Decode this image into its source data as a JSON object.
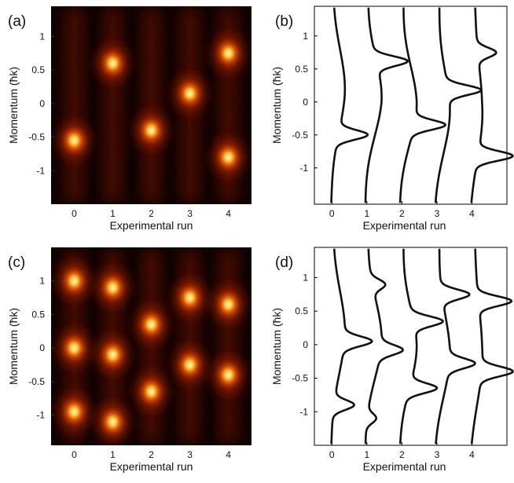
{
  "panels": [
    {
      "label": "(a)"
    },
    {
      "label": "(b)"
    },
    {
      "label": "(c)"
    },
    {
      "label": "(d)"
    }
  ],
  "chart_data": [
    {
      "type": "heatmap",
      "panel": "(a)",
      "xlabel": "Experimental run",
      "ylabel": "Momentum (ħk)",
      "x_ticks": [
        "0",
        "1",
        "2",
        "3",
        "4"
      ],
      "y_ticks": [
        "1",
        "0.5",
        "0",
        "-0.5",
        "-1"
      ],
      "xlim": [
        -0.6,
        4.6
      ],
      "ylim": [
        -1.5,
        1.45
      ],
      "colormap": "black-red-yellow-white (hot)",
      "runs": [
        {
          "run": 0,
          "peak_momenta": [
            -0.55
          ]
        },
        {
          "run": 1,
          "peak_momenta": [
            0.6
          ]
        },
        {
          "run": 2,
          "peak_momenta": [
            -0.4
          ]
        },
        {
          "run": 3,
          "peak_momenta": [
            0.15
          ]
        },
        {
          "run": 4,
          "peak_momenta": [
            0.75,
            -0.8
          ]
        }
      ]
    },
    {
      "type": "line",
      "panel": "(b)",
      "xlabel": "Experimental run",
      "ylabel": "Momentum (ħk)",
      "x_ticks": [
        "0",
        "1",
        "2",
        "3",
        "4"
      ],
      "y_ticks": [
        "1",
        "0.5",
        "0",
        "-0.5",
        "-1"
      ],
      "xlim": [
        -0.5,
        5.0
      ],
      "ylim": [
        -1.55,
        1.45
      ],
      "series": [
        {
          "offset": 0,
          "peaks": [
            {
              "momentum": -0.5,
              "height": 0.8
            }
          ]
        },
        {
          "offset": 1,
          "peaks": [
            {
              "momentum": 0.62,
              "height": 0.85
            }
          ]
        },
        {
          "offset": 2,
          "peaks": [
            {
              "momentum": -0.35,
              "height": 0.85
            }
          ]
        },
        {
          "offset": 3,
          "peaks": [
            {
              "momentum": 0.18,
              "height": 0.9
            }
          ]
        },
        {
          "offset": 4,
          "peaks": [
            {
              "momentum": 0.75,
              "height": 0.5
            },
            {
              "momentum": -0.82,
              "height": 0.95
            }
          ]
        }
      ]
    },
    {
      "type": "heatmap",
      "panel": "(c)",
      "xlabel": "Experimental run",
      "ylabel": "Momentum (ħk)",
      "x_ticks": [
        "0",
        "1",
        "2",
        "3",
        "4"
      ],
      "y_ticks": [
        "1",
        "0.5",
        "0",
        "-0.5",
        "-1"
      ],
      "xlim": [
        -0.6,
        4.6
      ],
      "ylim": [
        -1.45,
        1.5
      ],
      "colormap": "black-red-yellow-white (hot)",
      "runs": [
        {
          "run": 0,
          "peak_momenta": [
            1.0,
            0.0,
            -0.95
          ]
        },
        {
          "run": 1,
          "peak_momenta": [
            0.9,
            -0.1,
            -1.1
          ]
        },
        {
          "run": 2,
          "peak_momenta": [
            0.35,
            -0.65
          ]
        },
        {
          "run": 3,
          "peak_momenta": [
            0.75,
            -0.25
          ]
        },
        {
          "run": 4,
          "peak_momenta": [
            0.65,
            -0.4
          ]
        }
      ]
    },
    {
      "type": "line",
      "panel": "(d)",
      "xlabel": "Experimental run",
      "ylabel": "Momentum (ħk)",
      "x_ticks": [
        "0",
        "1",
        "2",
        "3",
        "4"
      ],
      "y_ticks": [
        "1",
        "0.5",
        "0",
        "-0.5",
        "-1"
      ],
      "xlim": [
        -0.5,
        5.0
      ],
      "ylim": [
        -1.5,
        1.45
      ],
      "series": [
        {
          "offset": 0,
          "peaks": [
            {
              "momentum": 0.05,
              "height": 0.75
            },
            {
              "momentum": -0.9,
              "height": 0.55
            }
          ]
        },
        {
          "offset": 1,
          "peaks": [
            {
              "momentum": 0.9,
              "height": 0.35
            },
            {
              "momentum": -0.08,
              "height": 0.6
            },
            {
              "momentum": -1.1,
              "height": 0.25
            }
          ]
        },
        {
          "offset": 2,
          "peaks": [
            {
              "momentum": 0.35,
              "height": 0.8
            },
            {
              "momentum": -0.65,
              "height": 0.75
            }
          ]
        },
        {
          "offset": 3,
          "peaks": [
            {
              "momentum": 0.75,
              "height": 0.75
            },
            {
              "momentum": -0.28,
              "height": 0.7
            }
          ]
        },
        {
          "offset": 4,
          "peaks": [
            {
              "momentum": 0.65,
              "height": 0.9
            },
            {
              "momentum": -0.4,
              "height": 0.85
            }
          ]
        }
      ]
    }
  ]
}
